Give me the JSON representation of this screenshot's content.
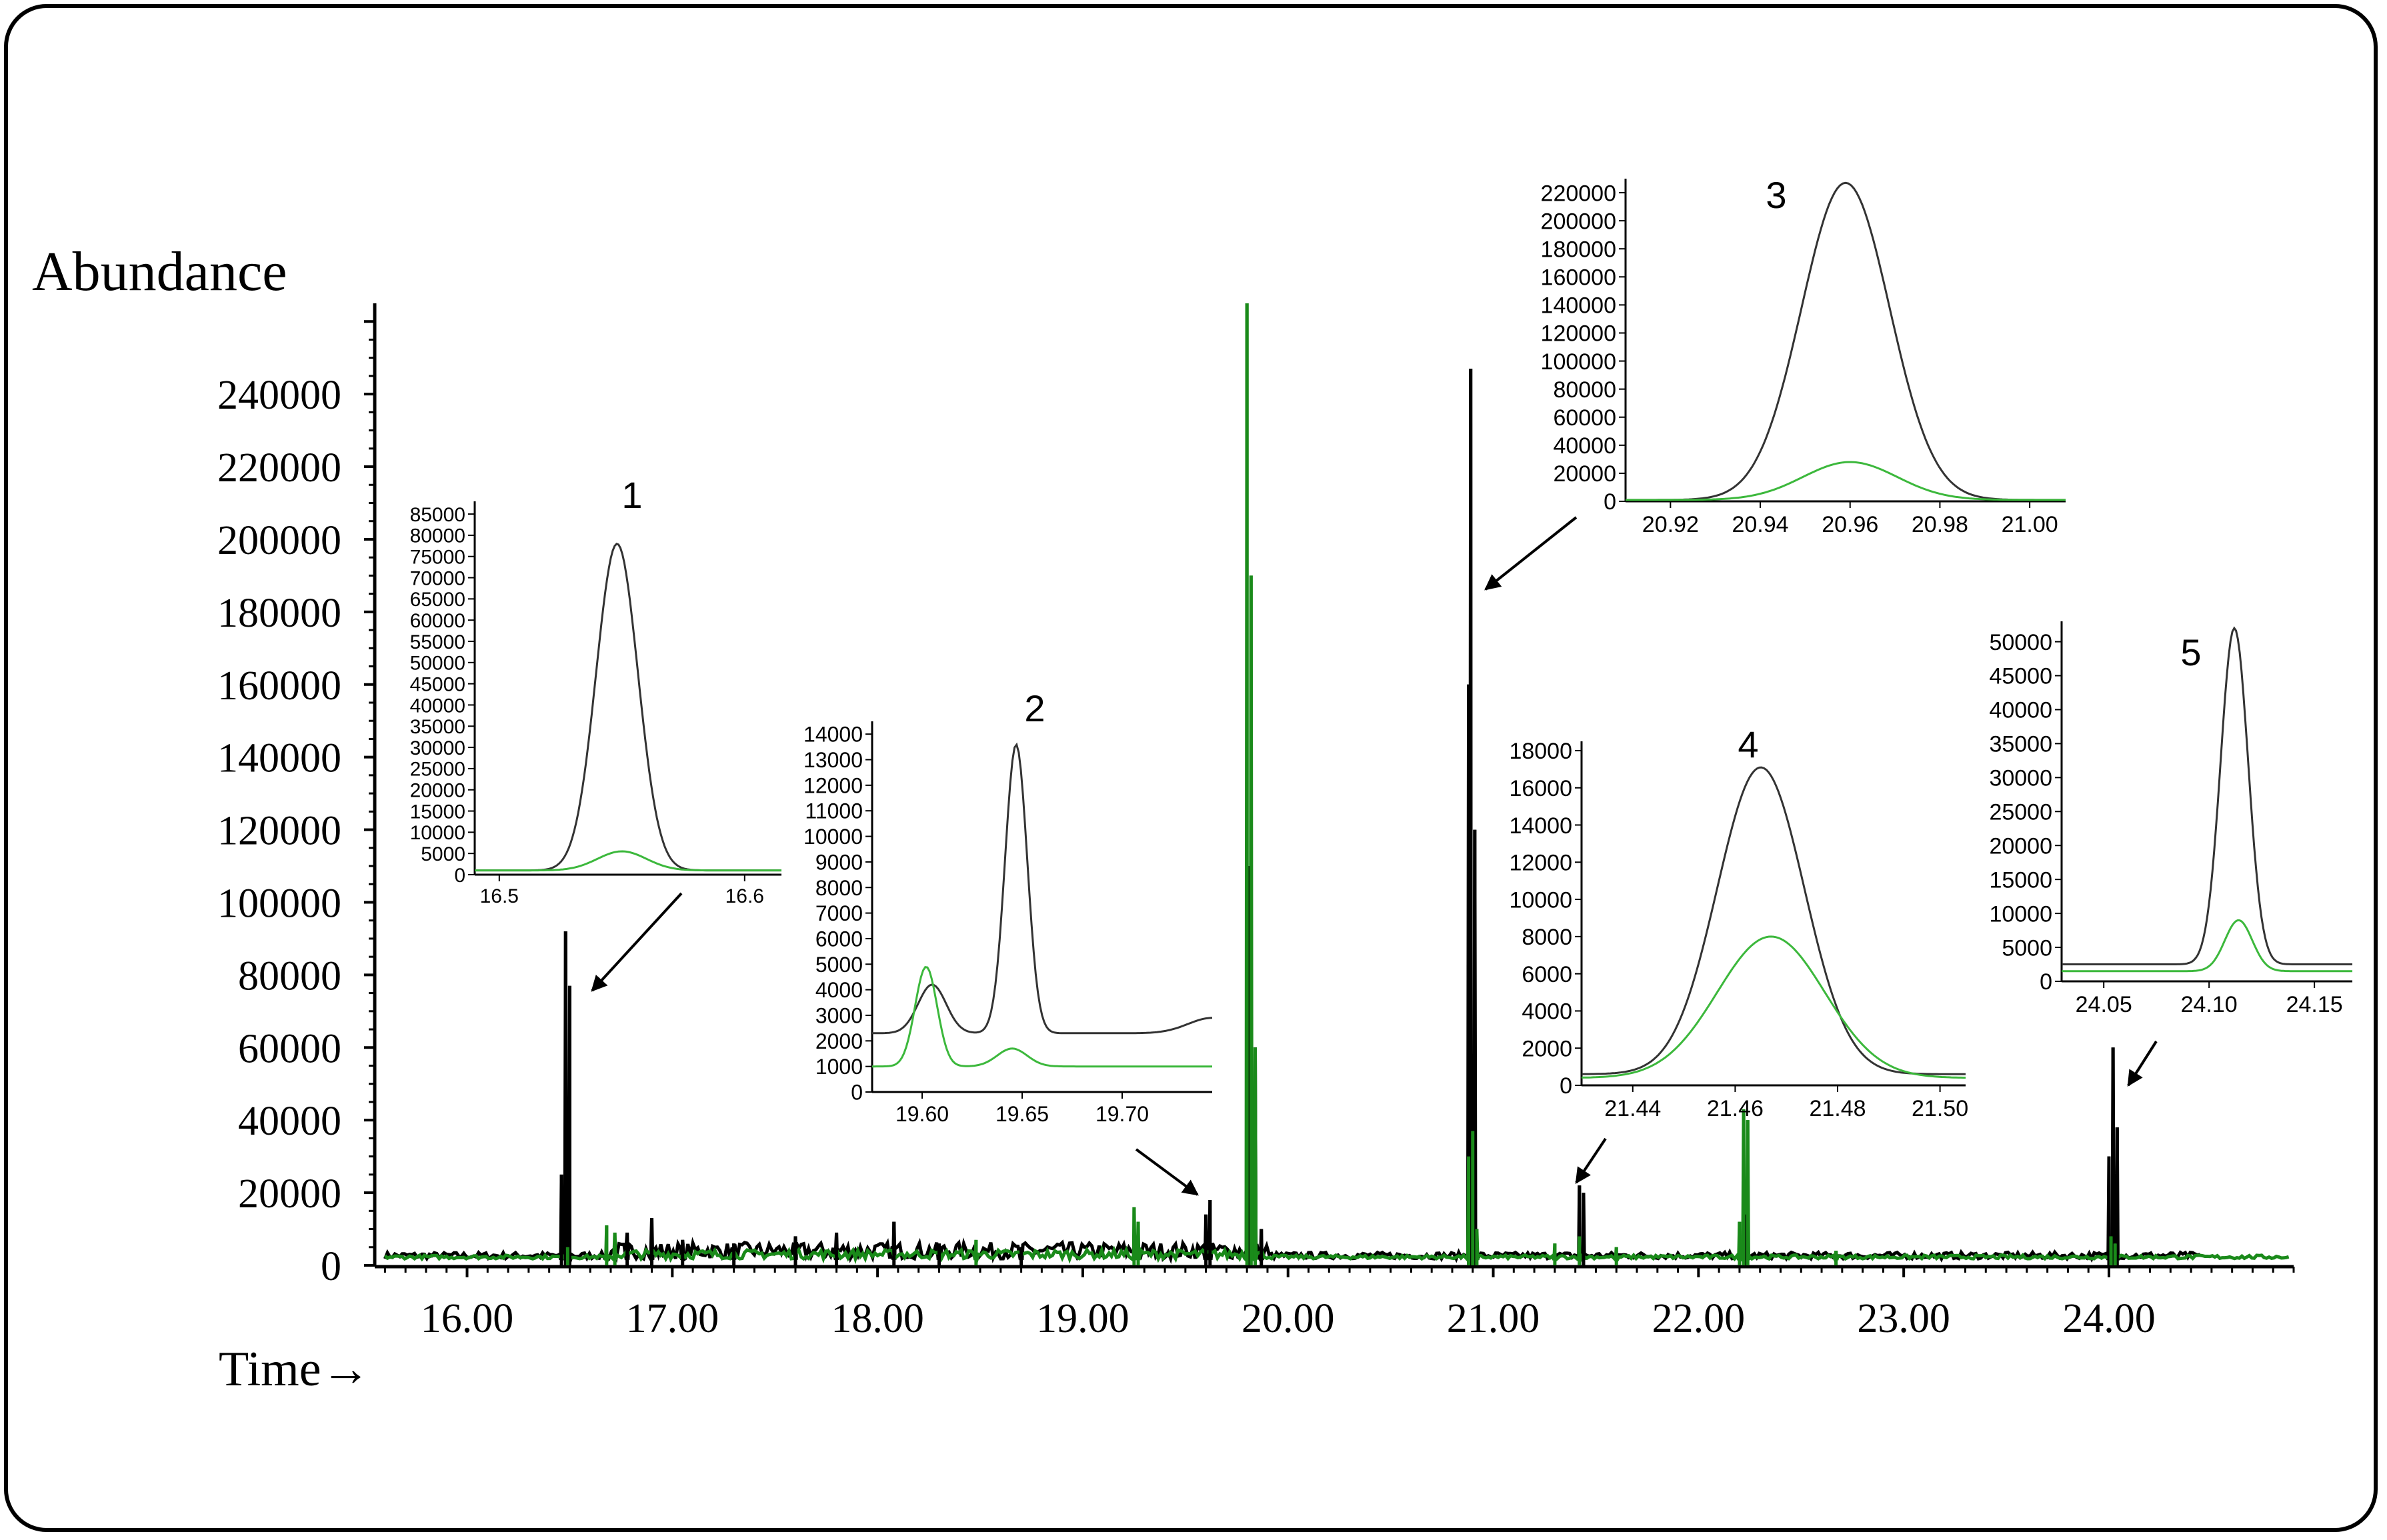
{
  "colors": {
    "series_black": "#000000",
    "series_green": "#1a8a1a",
    "inset_green": "#3cb83c",
    "frame": "#000000"
  },
  "chart_data": [
    {
      "id": "main",
      "type": "line",
      "ylabel": "Abundance",
      "xlabel": "Time→",
      "xlim": [
        15.55,
        24.9
      ],
      "ylim": [
        0,
        265000
      ],
      "xticks": [
        "16.00",
        "17.00",
        "18.00",
        "19.00",
        "20.00",
        "21.00",
        "22.00",
        "23.00",
        "24.00"
      ],
      "yticks": [
        "0",
        "20000",
        "40000",
        "60000",
        "80000",
        "100000",
        "120000",
        "140000",
        "160000",
        "180000",
        "200000",
        "220000",
        "240000"
      ],
      "series": [
        {
          "color": "black",
          "peaks": [
            [
              16.48,
              92000
            ],
            [
              16.5,
              77000
            ],
            [
              16.46,
              25000
            ],
            [
              16.9,
              13000
            ],
            [
              16.78,
              9000
            ],
            [
              17.05,
              7000
            ],
            [
              17.3,
              6000
            ],
            [
              17.6,
              8000
            ],
            [
              17.8,
              9000
            ],
            [
              18.08,
              12000
            ],
            [
              18.3,
              6000
            ],
            [
              18.7,
              5000
            ],
            [
              19.6,
              14000
            ],
            [
              19.62,
              18000
            ],
            [
              19.81,
              110000
            ],
            [
              19.84,
              60000
            ],
            [
              19.87,
              10000
            ],
            [
              20.88,
              160000
            ],
            [
              20.89,
              247000
            ],
            [
              20.91,
              120000
            ],
            [
              21.42,
              22000
            ],
            [
              21.44,
              20000
            ],
            [
              22.23,
              14000
            ],
            [
              24.02,
              60000
            ],
            [
              24.04,
              38000
            ],
            [
              24.0,
              30000
            ]
          ]
        },
        {
          "color": "green",
          "peaks": [
            [
              16.49,
              5000
            ],
            [
              16.68,
              11000
            ],
            [
              16.72,
              9000
            ],
            [
              18.48,
              7000
            ],
            [
              19.25,
              16000
            ],
            [
              19.27,
              12000
            ],
            [
              19.8,
              265000
            ],
            [
              19.82,
              190000
            ],
            [
              19.84,
              60000
            ],
            [
              20.88,
              30000
            ],
            [
              20.9,
              37000
            ],
            [
              20.92,
              10000
            ],
            [
              21.3,
              6000
            ],
            [
              21.42,
              8000
            ],
            [
              21.6,
              5000
            ],
            [
              22.22,
              43000
            ],
            [
              22.24,
              40000
            ],
            [
              22.2,
              12000
            ],
            [
              22.67,
              4000
            ],
            [
              24.01,
              8000
            ],
            [
              24.03,
              6000
            ]
          ]
        }
      ]
    },
    {
      "id": "inset-1",
      "label": "1",
      "type": "line",
      "xlim": [
        16.49,
        16.615
      ],
      "ylim": [
        0,
        88000
      ],
      "xticks": [
        {
          "v": 16.5,
          "t": "16.5"
        },
        {
          "v": 16.6,
          "t": "16.6"
        }
      ],
      "yticks": [
        "0",
        "5000",
        "10000",
        "15000",
        "20000",
        "25000",
        "30000",
        "35000",
        "40000",
        "45000",
        "50000",
        "55000",
        "60000",
        "65000",
        "70000",
        "75000",
        "80000",
        "85000"
      ],
      "series": [
        {
          "color": "black",
          "baseline": 1000,
          "peaks": [
            [
              16.548,
              77000,
              0.0085
            ]
          ]
        },
        {
          "color": "green",
          "baseline": 1000,
          "peaks": [
            [
              16.55,
              4500,
              0.01
            ]
          ]
        }
      ]
    },
    {
      "id": "inset-2",
      "label": "2",
      "type": "line",
      "xlim": [
        19.575,
        19.745
      ],
      "ylim": [
        0,
        14500
      ],
      "xticks": [
        {
          "v": 19.6,
          "t": "19.60"
        },
        {
          "v": 19.65,
          "t": "19.65"
        },
        {
          "v": 19.7,
          "t": "19.70"
        }
      ],
      "yticks": [
        "0",
        "1000",
        "2000",
        "3000",
        "4000",
        "5000",
        "6000",
        "7000",
        "8000",
        "9000",
        "10000",
        "11000",
        "12000",
        "13000",
        "14000"
      ],
      "series": [
        {
          "color": "black",
          "baseline": 2300,
          "peaks": [
            [
              19.605,
              1900,
              0.007
            ],
            [
              19.647,
              11300,
              0.0055
            ],
            [
              19.745,
              600,
              0.012
            ]
          ]
        },
        {
          "color": "green",
          "baseline": 1000,
          "peaks": [
            [
              19.602,
              3900,
              0.0055
            ],
            [
              19.645,
              700,
              0.0075
            ]
          ]
        }
      ]
    },
    {
      "id": "inset-3",
      "label": "3",
      "type": "line",
      "xlim": [
        20.91,
        21.008
      ],
      "ylim": [
        0,
        230000
      ],
      "xticks": [
        {
          "v": 20.92,
          "t": "20.92"
        },
        {
          "v": 20.94,
          "t": "20.94"
        },
        {
          "v": 20.96,
          "t": "20.96"
        },
        {
          "v": 20.98,
          "t": "20.98"
        },
        {
          "v": 21.0,
          "t": "21.00"
        }
      ],
      "yticks": [
        "0",
        "20000",
        "40000",
        "60000",
        "80000",
        "100000",
        "120000",
        "140000",
        "160000",
        "180000",
        "200000",
        "220000"
      ],
      "series": [
        {
          "color": "black",
          "baseline": 1000,
          "peaks": [
            [
              20.959,
              226000,
              0.0098
            ]
          ]
        },
        {
          "color": "green",
          "baseline": 1000,
          "peaks": [
            [
              20.96,
              27000,
              0.0105
            ]
          ]
        }
      ]
    },
    {
      "id": "inset-4",
      "label": "4",
      "type": "line",
      "xlim": [
        21.43,
        21.505
      ],
      "ylim": [
        0,
        18500
      ],
      "xticks": [
        {
          "v": 21.44,
          "t": "21.44"
        },
        {
          "v": 21.46,
          "t": "21.46"
        },
        {
          "v": 21.48,
          "t": "21.48"
        },
        {
          "v": 21.5,
          "t": "21.50"
        }
      ],
      "yticks": [
        "0",
        "2000",
        "4000",
        "6000",
        "8000",
        "10000",
        "12000",
        "14000",
        "16000",
        "18000"
      ],
      "series": [
        {
          "color": "black",
          "baseline": 600,
          "peaks": [
            [
              21.465,
              16500,
              0.0085
            ]
          ]
        },
        {
          "color": "green",
          "baseline": 400,
          "peaks": [
            [
              21.467,
              7600,
              0.0105
            ]
          ]
        }
      ]
    },
    {
      "id": "inset-5",
      "label": "5",
      "type": "line",
      "xlim": [
        24.03,
        24.168
      ],
      "ylim": [
        0,
        53000
      ],
      "xticks": [
        {
          "v": 24.05,
          "t": "24.05"
        },
        {
          "v": 24.1,
          "t": "24.10"
        },
        {
          "v": 24.15,
          "t": "24.15"
        }
      ],
      "yticks": [
        "0",
        "5000",
        "10000",
        "15000",
        "20000",
        "25000",
        "30000",
        "35000",
        "40000",
        "45000",
        "50000"
      ],
      "series": [
        {
          "color": "black",
          "baseline": 2500,
          "peaks": [
            [
              24.112,
              49500,
              0.0065
            ]
          ]
        },
        {
          "color": "green",
          "baseline": 1500,
          "peaks": [
            [
              24.114,
              7500,
              0.0065
            ]
          ]
        }
      ]
    }
  ]
}
